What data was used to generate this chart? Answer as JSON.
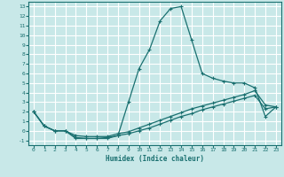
{
  "xlabel": "Humidex (Indice chaleur)",
  "bg_color": "#c8e8e8",
  "grid_color": "#ffffff",
  "line_color": "#1a7070",
  "xlim": [
    -0.5,
    23.5
  ],
  "ylim": [
    -1.5,
    13.5
  ],
  "xticks": [
    0,
    1,
    2,
    3,
    4,
    5,
    6,
    7,
    8,
    9,
    10,
    11,
    12,
    13,
    14,
    15,
    16,
    17,
    18,
    19,
    20,
    21,
    22,
    23
  ],
  "yticks": [
    -1,
    0,
    1,
    2,
    3,
    4,
    5,
    6,
    7,
    8,
    9,
    10,
    11,
    12,
    13
  ],
  "curve1_x": [
    0,
    1,
    2,
    3,
    4,
    5,
    6,
    7,
    8,
    9,
    10,
    11,
    12,
    13,
    14,
    15,
    16,
    17,
    18,
    19,
    20,
    21,
    22,
    23
  ],
  "curve1_y": [
    2.0,
    0.5,
    0.0,
    0.0,
    -0.8,
    -0.8,
    -0.8,
    -0.8,
    -0.5,
    3.0,
    6.5,
    8.5,
    11.5,
    12.8,
    13.0,
    9.5,
    6.0,
    5.5,
    5.2,
    5.0,
    5.0,
    4.5,
    1.5,
    2.5
  ],
  "curve2_x": [
    0,
    1,
    2,
    3,
    4,
    5,
    6,
    7,
    8,
    9,
    10,
    11,
    12,
    13,
    14,
    15,
    16,
    17,
    18,
    19,
    20,
    21,
    22,
    23
  ],
  "curve2_y": [
    2.0,
    0.5,
    0.0,
    0.0,
    -0.7,
    -0.8,
    -0.8,
    -0.7,
    -0.5,
    -0.3,
    0.0,
    0.3,
    0.7,
    1.1,
    1.5,
    1.8,
    2.2,
    2.5,
    2.8,
    3.1,
    3.4,
    3.7,
    2.3,
    2.5
  ],
  "curve3_x": [
    0,
    1,
    2,
    3,
    4,
    5,
    6,
    7,
    8,
    9,
    10,
    11,
    12,
    13,
    14,
    15,
    16,
    17,
    18,
    19,
    20,
    21,
    22,
    23
  ],
  "curve3_y": [
    2.0,
    0.5,
    0.0,
    0.0,
    -0.5,
    -0.6,
    -0.6,
    -0.6,
    -0.3,
    -0.1,
    0.3,
    0.7,
    1.1,
    1.5,
    1.9,
    2.3,
    2.6,
    2.9,
    3.2,
    3.5,
    3.8,
    4.2,
    2.7,
    2.5
  ]
}
